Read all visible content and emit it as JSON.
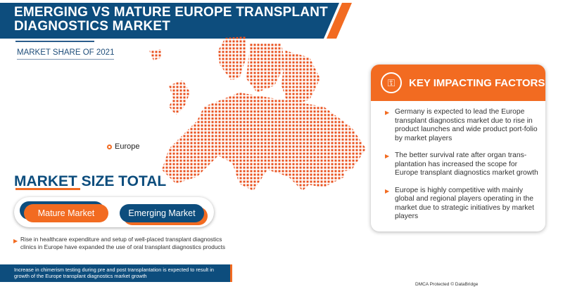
{
  "header": {
    "title_line1": "EMERGING VS MATURE EUROPE TRANSPLANT",
    "title_line2": "DIAGNOSTICS MARKET"
  },
  "market_share_label": "MARKET SHARE OF 2021",
  "map": {
    "region_label": "Europe",
    "dot_color": "#e8501e"
  },
  "market_size": {
    "title": "MARKET SIZE TOTAL",
    "mature_label": "Mature Market",
    "emerging_label": "Emerging Market"
  },
  "note": "Rise in healthcare expenditure and setup of well-placed transplant diagnostics clinics in Europe have expanded the use of oral transplant diagnostics products",
  "footer": "Increase in chimerism testing during pre and post transplantation is expected to result in growth of the Europe transplant diagnostics market growth",
  "key_factors": {
    "title": "KEY IMPACTING FACTORS",
    "icon": "hand-key-icon",
    "items": [
      "Germany is expected to lead the Europe transplant diagnostics market due to rise in product launches and wide product port-folio by market players",
      "The better survival rate after organ trans-plantation has increased the scope for Europe transplant diagnostics market growth",
      "Europe is highly competitive with mainly global and regional players operating in the market due to strategic initiatives by market players"
    ]
  },
  "dmca": "DMCA Protected © DataBridge",
  "colors": {
    "primary": "#0d4d7d",
    "accent": "#f26b21"
  }
}
